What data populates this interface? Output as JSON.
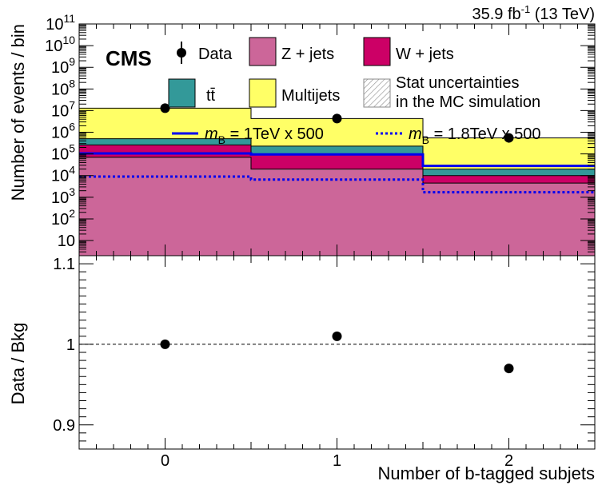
{
  "chart_data": [
    {
      "type": "bar",
      "stacked": true,
      "histogram": true,
      "x_bins": [
        [
          -0.5,
          0.5
        ],
        [
          0.5,
          1.5
        ],
        [
          1.5,
          2.5
        ]
      ],
      "x_ticks": [
        "0",
        "1",
        "2"
      ],
      "xlim": [
        -0.5,
        2.5
      ],
      "ylim": [
        2,
        100000000000
      ],
      "log_y": true,
      "ylabel": "Number of events / bin",
      "y_tick_labels": [
        {
          "value": 10,
          "base": "10",
          "exp": ""
        },
        {
          "value": 100,
          "base": "10",
          "exp": "2"
        },
        {
          "value": 1000,
          "base": "10",
          "exp": "3"
        },
        {
          "value": 10000,
          "base": "10",
          "exp": "4"
        },
        {
          "value": 100000,
          "base": "10",
          "exp": "5"
        },
        {
          "value": 1000000,
          "base": "10",
          "exp": "6"
        },
        {
          "value": 10000000,
          "base": "10",
          "exp": "7"
        },
        {
          "value": 100000000,
          "base": "10",
          "exp": "8"
        },
        {
          "value": 1000000000,
          "base": "10",
          "exp": "9"
        },
        {
          "value": 10000000000,
          "base": "10",
          "exp": "10"
        },
        {
          "value": 100000000000,
          "base": "10",
          "exp": "11"
        }
      ],
      "lumi_label": {
        "base": "35.9 fb",
        "exp": "-1",
        "rest": " (13 TeV)"
      },
      "experiment_label": "CMS",
      "stack": [
        {
          "name": "Z + jets",
          "color": "#cc6699",
          "cumulative": [
            70000,
            20000,
            4500
          ]
        },
        {
          "name": "W + jets",
          "color": "#cc0066",
          "cumulative": [
            260000,
            90000,
            10000
          ]
        },
        {
          "name": "tt̄",
          "color": "#339999",
          "cumulative": [
            500000,
            230000,
            20000
          ]
        },
        {
          "name": "Multijets",
          "color": "#ffff66",
          "cumulative": [
            13000000,
            4300000,
            550000
          ]
        }
      ],
      "data": {
        "name": "Data",
        "values": [
          13000000,
          4300000,
          550000
        ]
      },
      "signals": [
        {
          "name": "m_B = 1TeV x 500",
          "label_parts": {
            "m": "m",
            "sub": "B",
            "rest": " = 1TeV x 500"
          },
          "style": "solid",
          "color": "#0000ee",
          "values": [
            105000,
            95000,
            28000
          ]
        },
        {
          "name": "m_B = 1.8TeV x 500",
          "label_parts": {
            "m": "m",
            "sub": "B",
            "rest": " = 1.8TeV x 500"
          },
          "style": "dotted",
          "color": "#0000ee",
          "values": [
            9000,
            6500,
            1700
          ]
        }
      ],
      "uncertainty_legend": [
        "Stat uncertainties",
        "in the MC simulation"
      ],
      "legend_position": "top"
    },
    {
      "type": "scatter",
      "xlabel": "Number of b-tagged subjets",
      "ylabel": "Data / Bkg",
      "x": [
        0,
        1,
        2
      ],
      "y": [
        1.0,
        1.01,
        0.97
      ],
      "xlim": [
        -0.5,
        2.5
      ],
      "ylim": [
        0.87,
        1.11
      ],
      "y_ticks": [
        "0.9",
        "1",
        "1.1"
      ],
      "reference_line": 1.0
    }
  ]
}
